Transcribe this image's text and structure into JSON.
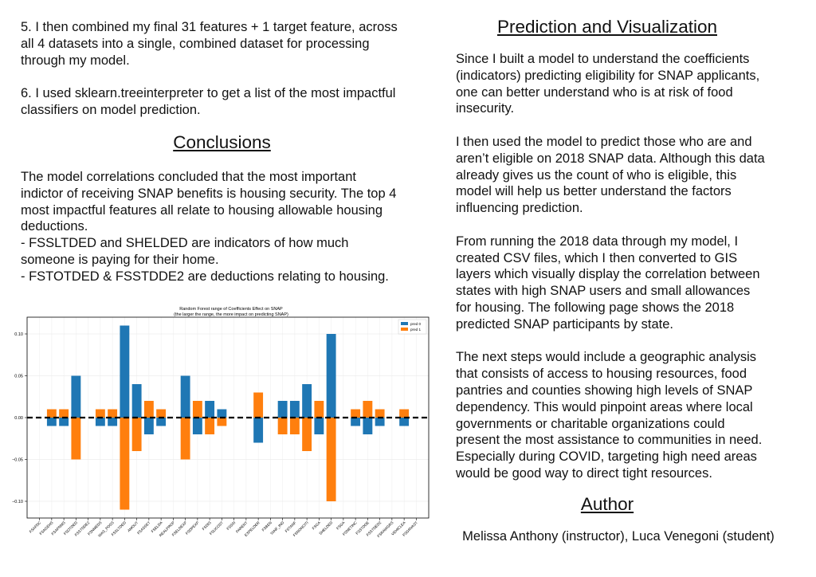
{
  "left_top": {
    "p5": [
      "5. I then combined my final 31 features + 1 target feature, across",
      "all 4 datasets into a single, combined dataset for processing",
      "through my model."
    ],
    "p6": [
      "6. I used sklearn.treeinterpreter to get a list of the most impactful",
      "classifiers on model prediction."
    ]
  },
  "conclusions": {
    "heading": "Conclusions",
    "lines": [
      "The model correlations concluded that the most important",
      "indictor of receiving SNAP benefits is housing security. The top 4",
      "most impactful features all relate to housing allowable housing",
      "deductions.",
      "- FSSLTDED and SHELDED are indicators of how much",
      "someone is paying for their home.",
      "- FSTOTDED & FSSTDDE2 are deductions relating to housing."
    ]
  },
  "prediction": {
    "heading": "Prediction and Visualization",
    "p1": [
      "Since I built a model to understand the coefficients",
      "(indicators) predicting eligibility for SNAP applicants,",
      "one can better understand who is at risk of food",
      "insecurity."
    ],
    "p2": [
      "I then used the model to predict those who are and",
      "aren’t eligible on 2018 SNAP data. Although this data",
      "already gives us the count of who is eligible, this",
      "model will help us better understand the factors",
      "influencing prediction."
    ],
    "p3": [
      "From running the 2018 data through my model, I",
      "created CSV files, which I then converted to GIS",
      "layers which visually display the correlation between",
      "states with high SNAP users and small allowances",
      "for housing. The following page shows the 2018",
      "predicted SNAP participants by state."
    ],
    "p4": [
      "The next steps would include a geographic analysis",
      "that consists of access to housing resources, food",
      "pantries and counties showing high levels of SNAP",
      "dependency.  This would pinpoint areas where local",
      "governments or charitable organizations could",
      "present the most assistance to communities in need.",
      "Especially during COVID, targeting high need areas",
      "would be good way to direct tight resources."
    ]
  },
  "author": {
    "heading": "Author",
    "names": "Melissa Anthony (instructor), Luca Venegoni (student)"
  },
  "chart_data": {
    "type": "bar",
    "title": "Random Forest range of Coefficients Effect on SNAP",
    "subtitle": "(the larger the range, the more impact on predicting SNAP)",
    "xlabel": "",
    "ylabel": "",
    "ylim": [
      -0.12,
      0.12
    ],
    "yticks": [
      -0.1,
      -0.05,
      0.0,
      0.05,
      0.1
    ],
    "ytick_labels": [
      "−0.10",
      "−0.05",
      "0.00",
      "0.05",
      "0.10"
    ],
    "grid": true,
    "legend_position": "top-right",
    "zero_line": "dashed",
    "categories": [
      "FSAFDC",
      "FSAGEHS",
      "FSAPNMS",
      "FSOTDED",
      "FSSTDDE2",
      "FSNMEDS",
      "WAS_POSS",
      "FSSLTDED",
      "AMOUT",
      "FSASSET",
      "FSELDA",
      "REALPROP",
      "FSELDEXP",
      "FSDPEXP",
      "FSDIS",
      "FSUCOST",
      "FSSSI",
      "PARENT",
      "EXPELDER",
      "FSBEN",
      "TANF_IND",
      "FSTANF",
      "FSNONCITI",
      "FSGA",
      "SHELDED",
      "FSGA",
      "FSNETINC",
      "FSSTDDE",
      "FSSTDED2",
      "FSRAWGRS",
      "VEHICLEA",
      "FSGRVAST"
    ],
    "series": [
      {
        "name": "pred 0",
        "color": "#1f77b4",
        "values": [
          0,
          -0.01,
          -0.01,
          0.05,
          0,
          -0.01,
          -0.01,
          0.11,
          0.04,
          -0.02,
          -0.01,
          0,
          0.05,
          -0.02,
          0.02,
          0.01,
          0,
          0,
          -0.03,
          0,
          0.02,
          0.02,
          0.04,
          -0.02,
          0.1,
          0,
          -0.01,
          -0.02,
          -0.01,
          0,
          -0.01,
          0
        ]
      },
      {
        "name": "pred 1",
        "color": "#ff7f0e",
        "values": [
          0,
          0.01,
          0.01,
          -0.05,
          0,
          0.01,
          0.01,
          -0.11,
          -0.04,
          0.02,
          0.01,
          0,
          -0.05,
          0.02,
          -0.02,
          -0.01,
          0,
          0,
          0.03,
          0,
          -0.02,
          -0.02,
          -0.04,
          0.02,
          -0.1,
          0,
          0.01,
          0.02,
          0.01,
          0,
          0.01,
          0
        ]
      }
    ]
  }
}
